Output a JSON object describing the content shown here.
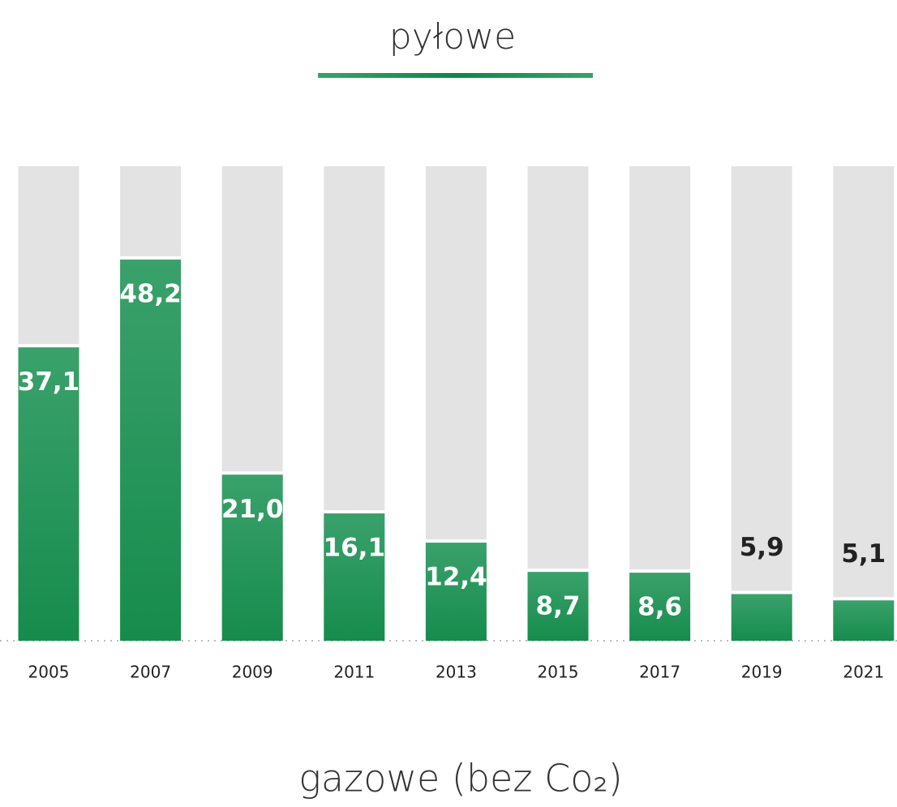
{
  "chart_data": {
    "type": "bar",
    "title": "pyłowe",
    "subtitle": "gazowe (bez Co₂)",
    "categories": [
      "2005",
      "2007",
      "2009",
      "2011",
      "2013",
      "2015",
      "2017",
      "2019",
      "2021"
    ],
    "values": [
      37.1,
      48.2,
      21.0,
      16.1,
      12.4,
      8.7,
      8.6,
      5.9,
      5.1
    ],
    "value_labels": [
      "37,1",
      "48,2",
      "21,0",
      "16,1",
      "12,4",
      "8,7",
      "8,6",
      "5,9",
      "5,1"
    ],
    "color": "#1e9152",
    "ylim": [
      0,
      60
    ]
  }
}
